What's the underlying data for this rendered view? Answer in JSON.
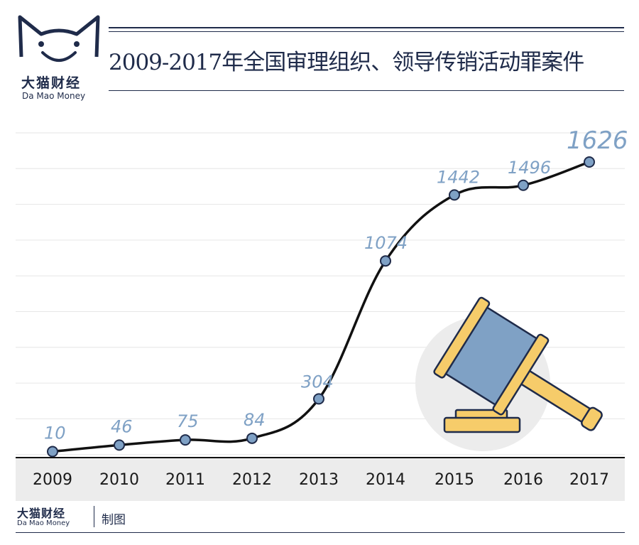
{
  "brand": {
    "name_cn": "大猫财经",
    "name_en": "Da Mao Money"
  },
  "chart_title": "2009-2017年全国审理组织、领导传销活动罪案件",
  "footer": {
    "brand_cn": "大猫财经",
    "brand_en": "Da Mao Money",
    "made_by": "制图"
  },
  "colors": {
    "navy": "#1f2b4a",
    "label_blue": "#7fa1c5",
    "marker_fill": "#7fa1c5",
    "line": "#111111",
    "gavel_circle": "#ececec",
    "gavel_wood": "#f6cc6a",
    "gavel_head": "#7fa1c5"
  },
  "icons": [
    "cat-logo-icon",
    "gavel-icon"
  ],
  "chart_data": {
    "type": "line",
    "title": "2009-2017年全国审理组织、领导传销活动罪案件",
    "xlabel": "",
    "ylabel": "",
    "categories": [
      "2009",
      "2010",
      "2011",
      "2012",
      "2013",
      "2014",
      "2015",
      "2016",
      "2017"
    ],
    "values": [
      10,
      46,
      75,
      84,
      304,
      1074,
      1442,
      1496,
      1626
    ],
    "data_labels": [
      "10",
      "46",
      "75",
      "84",
      "304",
      "1074",
      "1442",
      "1496",
      "1626"
    ],
    "ylim": [
      0,
      1800
    ],
    "grid": true,
    "legend": "none"
  }
}
